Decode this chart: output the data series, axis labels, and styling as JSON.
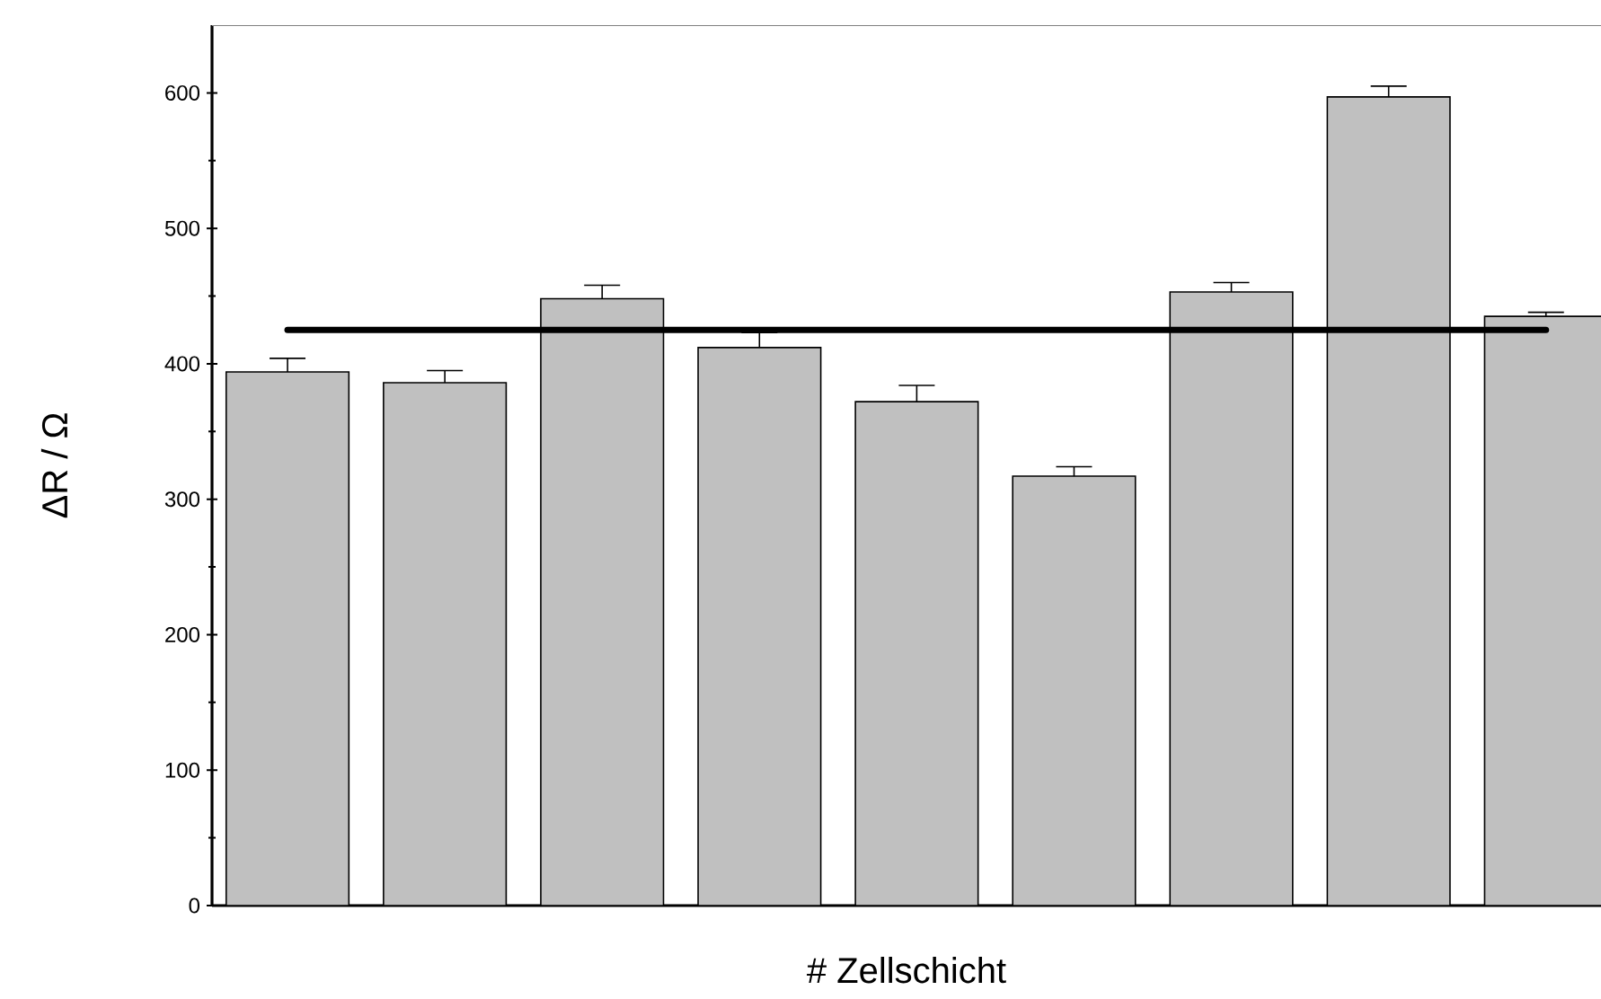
{
  "chart_data": {
    "type": "bar",
    "xlabel": "# Zellschicht",
    "ylabel": "ΔR / Ω",
    "categories": [
      null,
      null,
      null,
      null,
      null,
      null,
      null,
      null,
      null
    ],
    "values": [
      394,
      386,
      448,
      412,
      372,
      317,
      453,
      597,
      435
    ],
    "errors": [
      [
        394,
        404
      ],
      [
        386,
        395
      ],
      [
        448,
        458
      ],
      [
        412,
        423
      ],
      [
        372,
        384
      ],
      [
        317,
        324
      ],
      [
        453,
        460
      ],
      [
        597,
        605
      ],
      [
        435,
        438
      ]
    ],
    "color": "#c0c0c0",
    "ylim": [
      0,
      650
    ],
    "yticks": [
      0,
      100,
      200,
      300,
      400,
      500,
      600
    ],
    "ref_lines": [
      {
        "axis": "y",
        "value": 425,
        "color": "#000000"
      }
    ],
    "grid": false
  }
}
